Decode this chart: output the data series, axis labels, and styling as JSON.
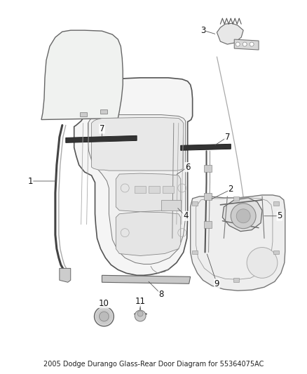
{
  "title": "2005 Dodge Durango Glass-Rear Door Diagram for 55364075AC",
  "bg_color": "#ffffff",
  "fig_width": 4.38,
  "fig_height": 5.33,
  "dpi": 100,
  "line_color": "#333333",
  "label_fontsize": 8.5,
  "title_fontsize": 7.0
}
